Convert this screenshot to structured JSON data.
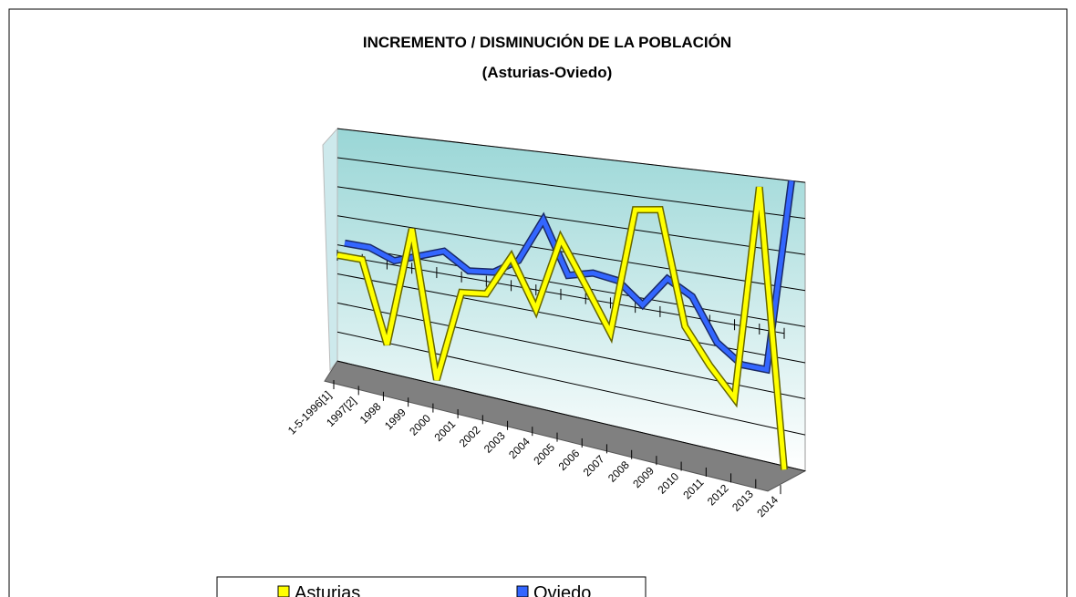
{
  "chart_data": {
    "type": "line3d",
    "title": "INCREMENTO / DISMINUCIÓN  DE LA POBLACIÓN",
    "subtitle": "(Asturias-Oviedo)",
    "categories": [
      "1-5-1996[1]",
      "1997[2]",
      "1998",
      "1999",
      "2000",
      "2001",
      "2002",
      "2003",
      "2004",
      "2005",
      "2006",
      "2007",
      "2008",
      "2009",
      "2010",
      "2011",
      "2012",
      "2013",
      "2014"
    ],
    "series": [
      {
        "name": "Asturias",
        "color": "#ffff00",
        "values": [
          0,
          0,
          -2.7,
          1.3,
          -3.5,
          -0.5,
          -0.4,
          0.9,
          -0.6,
          1.7,
          0.4,
          -0.9,
          2.9,
          3.0,
          -0.3,
          -1.3,
          -2.1,
          4,
          -3.8
        ]
      },
      {
        "name": "Oviedo",
        "color": "#3366ff",
        "values": [
          0.1,
          0.1,
          -0.2,
          0.1,
          0.4,
          -0.1,
          0,
          0.5,
          1.9,
          0.3,
          0.5,
          0.4,
          -0.2,
          0.7,
          0.3,
          -0.9,
          -1.4,
          -1.4,
          4
        ]
      }
    ],
    "ylim": [
      -4,
      4
    ],
    "yticks": [
      -4,
      -3,
      -2,
      -1,
      0,
      1,
      2,
      3,
      4
    ],
    "grid": true,
    "legend": "bottom"
  }
}
